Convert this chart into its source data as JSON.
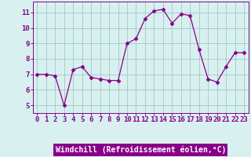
{
  "x": [
    0,
    1,
    2,
    3,
    4,
    5,
    6,
    7,
    8,
    9,
    10,
    11,
    12,
    13,
    14,
    15,
    16,
    17,
    18,
    19,
    20,
    21,
    22,
    23
  ],
  "y": [
    7.0,
    7.0,
    6.9,
    5.0,
    7.3,
    7.5,
    6.8,
    6.7,
    6.6,
    6.6,
    9.0,
    9.3,
    10.6,
    11.1,
    11.2,
    10.3,
    10.9,
    10.8,
    8.6,
    6.7,
    6.5,
    7.5,
    8.4,
    8.4
  ],
  "line_color": "#880088",
  "marker": "D",
  "marker_size": 2.5,
  "bg_color": "#d8f0f0",
  "grid_color": "#aacccc",
  "xlabel": "Windchill (Refroidissement éolien,°C)",
  "xlabel_color": "#ffffff",
  "xlabel_bg": "#880088",
  "ylabel_ticks": [
    5,
    6,
    7,
    8,
    9,
    10,
    11
  ],
  "xlim": [
    -0.5,
    23.5
  ],
  "ylim": [
    4.5,
    11.7
  ],
  "tick_fontsize": 6.5,
  "label_fontsize": 7
}
